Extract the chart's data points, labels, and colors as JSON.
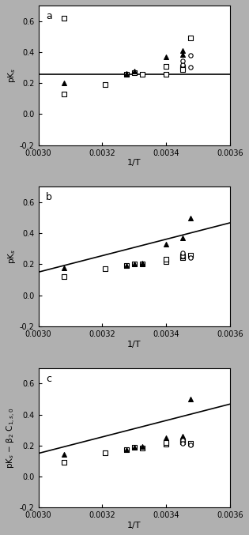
{
  "panels": [
    {
      "label": "a",
      "ylabel": "pK$_s$",
      "ylim": [
        -0.2,
        0.7
      ],
      "yticks": [
        -0.2,
        0.0,
        0.2,
        0.4,
        0.6
      ],
      "line_slope": 0.0,
      "line_intercept": 0.255,
      "line_x": [
        0.003,
        0.0036
      ],
      "data_squares": [
        [
          0.00308,
          0.62
        ],
        [
          0.00308,
          0.13
        ],
        [
          0.00321,
          0.19
        ],
        [
          0.003275,
          0.255
        ],
        [
          0.0033,
          0.265
        ],
        [
          0.003325,
          0.255
        ],
        [
          0.0034,
          0.255
        ],
        [
          0.0034,
          0.31
        ],
        [
          0.00345,
          0.3
        ],
        [
          0.00345,
          0.285
        ],
        [
          0.003475,
          0.49
        ]
      ],
      "data_triangles": [
        [
          0.00308,
          0.2
        ],
        [
          0.003275,
          0.26
        ],
        [
          0.0033,
          0.275
        ],
        [
          0.0034,
          0.37
        ],
        [
          0.00345,
          0.385
        ],
        [
          0.00345,
          0.41
        ]
      ],
      "data_circles": [
        [
          0.00345,
          0.32
        ],
        [
          0.00345,
          0.345
        ],
        [
          0.003475,
          0.38
        ],
        [
          0.003475,
          0.3
        ]
      ]
    },
    {
      "label": "b",
      "ylabel": "pK$_s$",
      "ylim": [
        -0.2,
        0.7
      ],
      "yticks": [
        -0.2,
        0.0,
        0.2,
        0.4,
        0.6
      ],
      "line_slope": 530.0,
      "line_intercept": -1.44,
      "line_x": [
        0.003,
        0.0036
      ],
      "data_squares": [
        [
          0.00308,
          0.12
        ],
        [
          0.00321,
          0.17
        ],
        [
          0.003275,
          0.19
        ],
        [
          0.0033,
          0.205
        ],
        [
          0.003325,
          0.2
        ],
        [
          0.0034,
          0.22
        ],
        [
          0.0034,
          0.235
        ],
        [
          0.00345,
          0.245
        ],
        [
          0.00345,
          0.255
        ],
        [
          0.003475,
          0.26
        ]
      ],
      "data_triangles": [
        [
          0.00308,
          0.175
        ],
        [
          0.003275,
          0.19
        ],
        [
          0.0033,
          0.205
        ],
        [
          0.003325,
          0.21
        ],
        [
          0.0034,
          0.33
        ],
        [
          0.00345,
          0.37
        ],
        [
          0.003475,
          0.5
        ]
      ],
      "data_circles": [
        [
          0.00345,
          0.255
        ],
        [
          0.00345,
          0.275
        ],
        [
          0.003475,
          0.245
        ]
      ]
    },
    {
      "label": "c",
      "ylabel": "pK$_s$ − β$_2$ C$_{1,s,0}$",
      "ylim": [
        -0.2,
        0.7
      ],
      "yticks": [
        -0.2,
        0.0,
        0.2,
        0.4,
        0.6
      ],
      "line_slope": 530.0,
      "line_intercept": -1.44,
      "line_x": [
        0.003,
        0.0036
      ],
      "data_squares": [
        [
          0.00308,
          0.09
        ],
        [
          0.00321,
          0.155
        ],
        [
          0.003275,
          0.175
        ],
        [
          0.0033,
          0.19
        ],
        [
          0.003325,
          0.185
        ],
        [
          0.0034,
          0.21
        ],
        [
          0.0034,
          0.22
        ],
        [
          0.00345,
          0.225
        ],
        [
          0.00345,
          0.23
        ],
        [
          0.003475,
          0.215
        ]
      ],
      "data_triangles": [
        [
          0.00308,
          0.145
        ],
        [
          0.003275,
          0.175
        ],
        [
          0.0033,
          0.19
        ],
        [
          0.003325,
          0.195
        ],
        [
          0.0034,
          0.25
        ],
        [
          0.00345,
          0.26
        ],
        [
          0.003475,
          0.5
        ]
      ],
      "data_circles": [
        [
          0.00345,
          0.235
        ],
        [
          0.00345,
          0.215
        ],
        [
          0.003475,
          0.205
        ]
      ]
    }
  ],
  "xlabel": "1/T",
  "xlim": [
    0.003,
    0.0036
  ],
  "xticks": [
    0.003,
    0.0032,
    0.0034,
    0.0036
  ],
  "figure_bg": "#b0b0b0",
  "plot_bg": "#ffffff"
}
